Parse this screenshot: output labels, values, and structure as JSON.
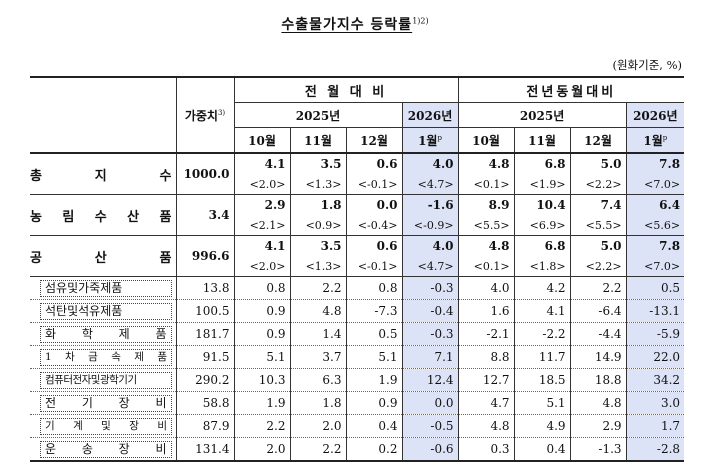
{
  "title": {
    "text": "수출물가지수 등락률",
    "note": "1)2)"
  },
  "unit": "(원화기준, %)",
  "header": {
    "weight": "가중치",
    "weight_note": "3)",
    "mom": "전 월 대 비",
    "yoy": "전년동월대비",
    "year_2025": "2025년",
    "year_2026": "2026년",
    "months": [
      "10월",
      "11월",
      "12월",
      "1월"
    ],
    "prelim": "p"
  },
  "rows": [
    {
      "name": "총 지 수",
      "weight": "1000.0",
      "mom": [
        "4.1",
        "3.5",
        "0.6",
        "4.0"
      ],
      "yoy": [
        "4.8",
        "6.8",
        "5.0",
        "7.8"
      ],
      "mom_c": [
        "<2.0>",
        "<1.3>",
        "<-0.1>",
        "<4.7>"
      ],
      "yoy_c": [
        "<0.1>",
        "<1.9>",
        "<2.2>",
        "<7.0>"
      ]
    },
    {
      "name": "농 림 수 산 품",
      "weight": "3.4",
      "mom": [
        "2.9",
        "1.8",
        "0.0",
        "-1.6"
      ],
      "yoy": [
        "8.9",
        "10.4",
        "7.4",
        "6.4"
      ],
      "mom_c": [
        "<2.1>",
        "<0.9>",
        "<-0.4>",
        "<-0.9>"
      ],
      "yoy_c": [
        "<5.5>",
        "<6.9>",
        "<5.5>",
        "<5.6>"
      ]
    },
    {
      "name": "공 산 품",
      "weight": "996.6",
      "mom": [
        "4.1",
        "3.5",
        "0.6",
        "4.0"
      ],
      "yoy": [
        "4.8",
        "6.8",
        "5.0",
        "7.8"
      ],
      "mom_c": [
        "<2.0>",
        "<1.3>",
        "<-0.1>",
        "<4.7>"
      ],
      "yoy_c": [
        "<0.1>",
        "<1.8>",
        "<2.2>",
        "<7.0>"
      ]
    }
  ],
  "subrows": [
    {
      "name": "섬유및가죽제품",
      "weight": "13.8",
      "mom": [
        "0.8",
        "2.2",
        "0.8",
        "-0.3"
      ],
      "yoy": [
        "4.0",
        "4.2",
        "2.2",
        "0.5"
      ]
    },
    {
      "name": "석탄및석유제품",
      "weight": "100.5",
      "mom": [
        "0.9",
        "4.8",
        "-7.3",
        "-0.4"
      ],
      "yoy": [
        "1.6",
        "4.1",
        "-6.4",
        "-13.1"
      ]
    },
    {
      "name": "화 학 제 품",
      "weight": "181.7",
      "mom": [
        "0.9",
        "1.4",
        "0.5",
        "-0.3"
      ],
      "yoy": [
        "-2.1",
        "-2.2",
        "-4.4",
        "-5.9"
      ]
    },
    {
      "name": "1 차 금 속 제 품",
      "weight": "91.5",
      "mom": [
        "5.1",
        "3.7",
        "5.1",
        "7.1"
      ],
      "yoy": [
        "8.8",
        "11.7",
        "14.9",
        "22.0"
      ]
    },
    {
      "name": "컴퓨터전자및광학기기",
      "weight": "290.2",
      "mom": [
        "10.3",
        "6.3",
        "1.9",
        "12.4"
      ],
      "yoy": [
        "12.7",
        "18.5",
        "18.8",
        "34.2"
      ]
    },
    {
      "name": "전 기 장 비",
      "weight": "58.8",
      "mom": [
        "1.9",
        "1.8",
        "0.9",
        "0.0"
      ],
      "yoy": [
        "4.7",
        "5.1",
        "4.8",
        "3.0"
      ]
    },
    {
      "name": "기 계 및 장 비",
      "weight": "87.9",
      "mom": [
        "2.2",
        "2.0",
        "0.4",
        "-0.5"
      ],
      "yoy": [
        "4.8",
        "4.9",
        "2.9",
        "1.7"
      ]
    },
    {
      "name": "운 송 장 비",
      "weight": "131.4",
      "mom": [
        "2.0",
        "2.2",
        "0.2",
        "-0.6"
      ],
      "yoy": [
        "0.3",
        "0.4",
        "-1.3",
        "-2.8"
      ]
    }
  ],
  "colors": {
    "highlight": "#dde3f6"
  }
}
